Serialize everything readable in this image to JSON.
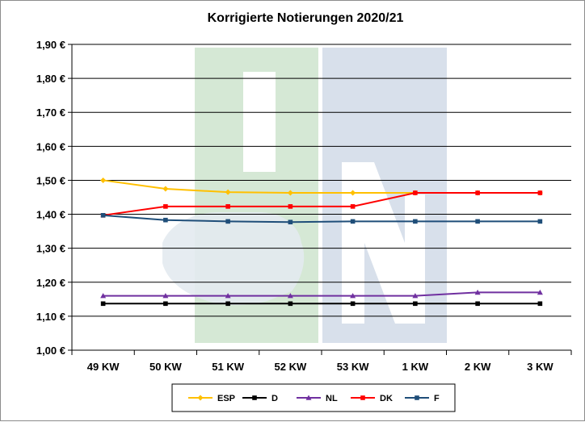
{
  "chart_data": {
    "type": "line",
    "title": "Korrigierte Notierungen 2020/21",
    "categories": [
      "49 KW",
      "50 KW",
      "51 KW",
      "52 KW",
      "53 KW",
      "1 KW",
      "2 KW",
      "3 KW"
    ],
    "ylim": [
      1.0,
      1.9
    ],
    "yticks": [
      "1,00 €",
      "1,10 €",
      "1,20 €",
      "1,30 €",
      "1,40 €",
      "1,50 €",
      "1,60 €",
      "1,70 €",
      "1,80 €",
      "1,90 €"
    ],
    "grid": true,
    "legend_position": "bottom",
    "series": [
      {
        "name": "ESP",
        "color": "#FFC000",
        "marker": "diamond",
        "values": [
          1.5,
          1.475,
          1.465,
          1.463,
          1.463,
          1.463,
          1.463,
          1.463
        ]
      },
      {
        "name": "D",
        "color": "#000000",
        "marker": "square",
        "values": [
          1.137,
          1.137,
          1.137,
          1.137,
          1.137,
          1.137,
          1.137,
          1.137
        ]
      },
      {
        "name": "NL",
        "color": "#7030A0",
        "marker": "triangle",
        "values": [
          1.16,
          1.16,
          1.16,
          1.16,
          1.16,
          1.16,
          1.17,
          1.17
        ]
      },
      {
        "name": "DK",
        "color": "#FF0000",
        "marker": "square",
        "values": [
          1.397,
          1.423,
          1.423,
          1.423,
          1.423,
          1.463,
          1.463,
          1.463
        ]
      },
      {
        "name": "F",
        "color": "#1F4E79",
        "marker": "square",
        "values": [
          1.397,
          1.383,
          1.379,
          1.377,
          1.379,
          1.379,
          1.379,
          1.379
        ]
      }
    ]
  },
  "watermark": {
    "text": "ISN",
    "colors": [
      "#D6E9D6",
      "#D9E1EC"
    ]
  }
}
